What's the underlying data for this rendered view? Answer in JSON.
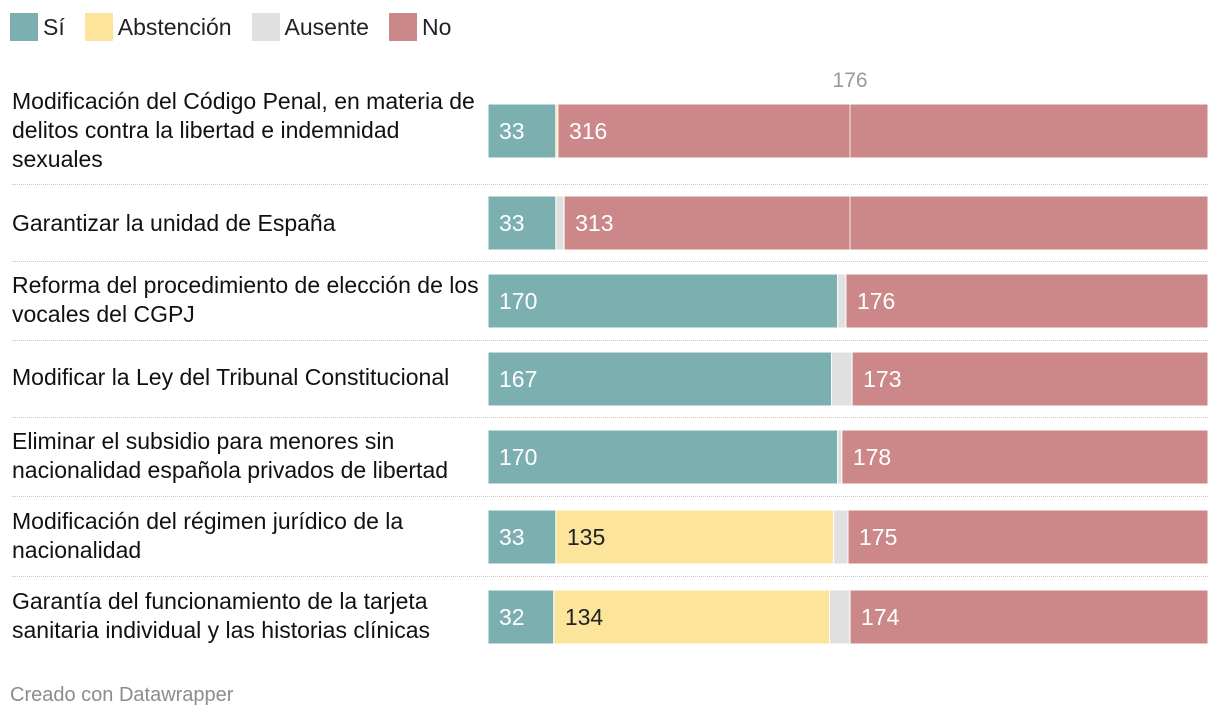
{
  "legend": [
    {
      "label": "Sí",
      "color": "#7cafb0"
    },
    {
      "label": "Abstención",
      "color": "#fde49b"
    },
    {
      "label": "Ausente",
      "color": "#e0e0e0"
    },
    {
      "label": "No",
      "color": "#cc8889"
    }
  ],
  "chart_data": {
    "type": "bar",
    "orientation": "horizontal",
    "stacked": true,
    "total": 350,
    "reference_line": {
      "value": 176,
      "label": "176"
    },
    "categories": [
      "Modificación del Código Penal, en materia de delitos contra la libertad e indemnidad sexuales",
      "Garantizar la unidad de España",
      "Reforma del procedimiento de elección de los vocales del CGPJ",
      "Modificar la Ley del Tribunal Constitucional",
      "Eliminar el subsidio para menores sin nacionalidad española privados de libertad",
      "Modificación del régimen jurídico de la nacionalidad",
      "Garantía del funcionamiento de la tarjeta sanitaria individual y las historias clínicas"
    ],
    "series": [
      {
        "name": "Sí",
        "color": "#7cafb0",
        "values": [
          33,
          33,
          170,
          167,
          170,
          33,
          32
        ]
      },
      {
        "name": "Abstención",
        "color": "#fde49b",
        "values": [
          1,
          0,
          0,
          0,
          0,
          135,
          134
        ]
      },
      {
        "name": "Ausente",
        "color": "#e0e0e0",
        "values": [
          0,
          4,
          4,
          10,
          2,
          7,
          10
        ]
      },
      {
        "name": "No",
        "color": "#cc8889",
        "values": [
          316,
          313,
          176,
          173,
          178,
          175,
          174
        ]
      }
    ],
    "value_labels_shown": {
      "Sí": [
        true,
        true,
        true,
        true,
        true,
        true,
        true
      ],
      "Abstención": [
        false,
        false,
        false,
        false,
        false,
        true,
        true
      ],
      "Ausente": [
        false,
        false,
        false,
        false,
        false,
        false,
        false
      ],
      "No": [
        true,
        true,
        true,
        true,
        true,
        true,
        true
      ]
    }
  },
  "footer": "Creado con Datawrapper"
}
